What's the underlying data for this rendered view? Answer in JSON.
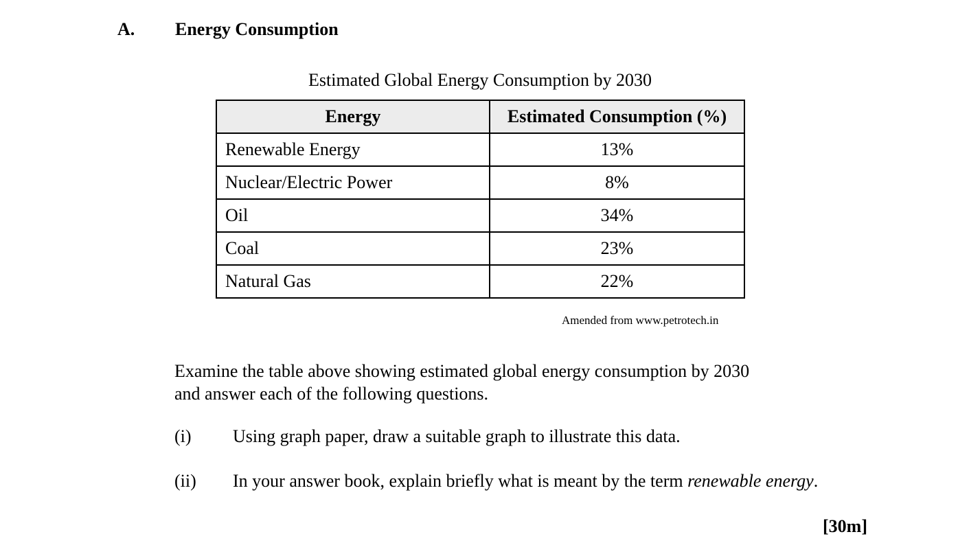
{
  "section": {
    "letter": "A.",
    "title": "Energy Consumption"
  },
  "table": {
    "caption": "Estimated Global Energy Consumption by 2030",
    "headers": [
      "Energy",
      "Estimated Consumption (%)"
    ],
    "rows": [
      {
        "energy": "Renewable Energy",
        "consumption": "13%"
      },
      {
        "energy": "Nuclear/Electric Power",
        "consumption": "8%"
      },
      {
        "energy": "Oil",
        "consumption": "34%"
      },
      {
        "energy": "Coal",
        "consumption": "23%"
      },
      {
        "energy": "Natural Gas",
        "consumption": "22%"
      }
    ],
    "source": "Amended from www.petrotech.in"
  },
  "instructions": {
    "intro_line1": "Examine the table above showing estimated global energy consumption by 2030",
    "intro_line2": "and answer each of the following questions."
  },
  "questions": [
    {
      "number": "(i)",
      "text": "Using graph paper, draw a suitable graph to illustrate this data."
    },
    {
      "number": "(ii)",
      "text_before": "In your answer book, explain briefly what is meant by the term ",
      "text_emphasis": "renewable energy",
      "text_after": "."
    }
  ],
  "marks": "[30m]"
}
